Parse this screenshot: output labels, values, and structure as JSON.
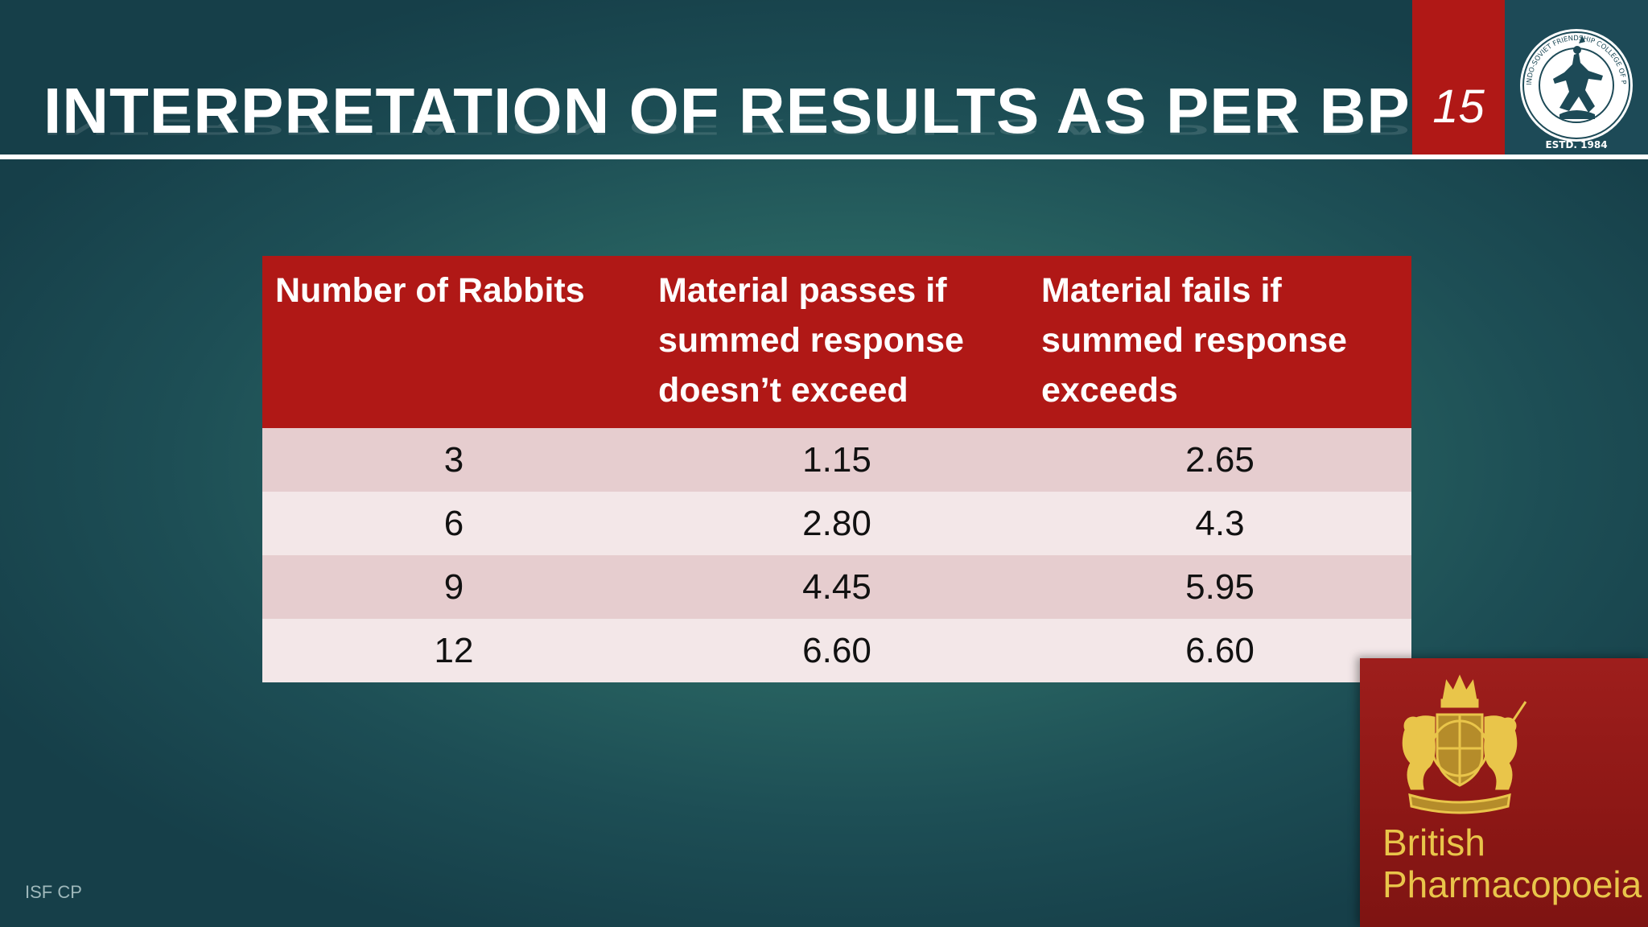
{
  "slide": {
    "title": "INTERPRETATION OF RESULTS AS PER BP",
    "number": "15",
    "footer": "ISF CP"
  },
  "logo": {
    "ring_text": "INDO-SOVIET FRIENDSHIP COLLEGE OF PHARMACY, MOGA (PB.)",
    "established": "ESTD. 1984"
  },
  "table": {
    "headers": [
      "Number of Rabbits",
      "Material passes if summed response doesn’t exceed",
      "Material fails if summed response exceeds"
    ],
    "rows": [
      [
        "3",
        "1.15",
        "2.65"
      ],
      [
        "6",
        "2.80",
        "4.3"
      ],
      [
        "9",
        "4.45",
        "5.95"
      ],
      [
        "12",
        "6.60",
        "6.60"
      ]
    ]
  },
  "book": {
    "line1": "British",
    "line2": "Pharmacopoeia"
  },
  "colors": {
    "accent_red": "#b01816",
    "row_dark": "#e6cdcf",
    "row_light": "#f3e7e8",
    "book_gold": "#e9c54a"
  }
}
